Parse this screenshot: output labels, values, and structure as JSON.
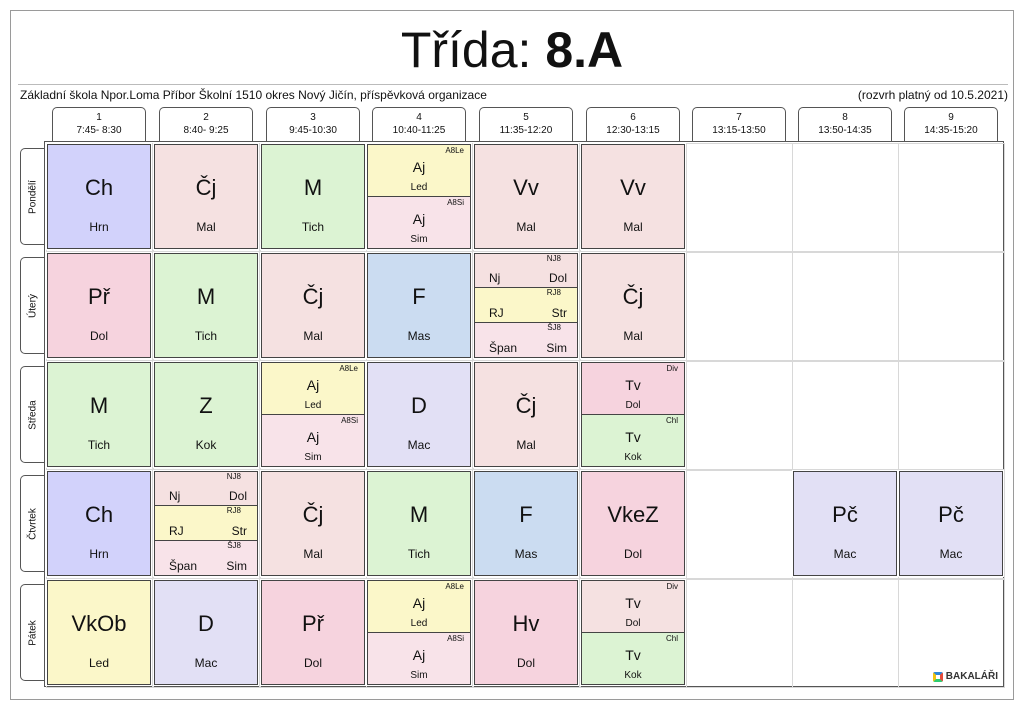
{
  "title": {
    "prefix": "Třída:",
    "class_name": "8.A"
  },
  "school_name": "Základní škola Npor.Loma Příbor Školní 1510 okres Nový Jičín, příspěvková organizace",
  "valid_from": "(rozvrh platný od 10.5.2021)",
  "brand": "BAKALÁŘI",
  "colors": {
    "violet": "#d2d2fb",
    "pink": "#f5e1e1",
    "green": "#dcf3d3",
    "yellow": "#fbf7c9",
    "rose": "#f6d3de",
    "blue": "#cbdcf1",
    "lavender": "#e2e0f5",
    "lightpink": "#f8e3e9"
  },
  "periods": [
    {
      "num": "1",
      "time": "7:45- 8:30"
    },
    {
      "num": "2",
      "time": "8:40- 9:25"
    },
    {
      "num": "3",
      "time": "9:45-10:30"
    },
    {
      "num": "4",
      "time": "10:40-11:25"
    },
    {
      "num": "5",
      "time": "11:35-12:20"
    },
    {
      "num": "6",
      "time": "12:30-13:15"
    },
    {
      "num": "7",
      "time": "13:15-13:50"
    },
    {
      "num": "8",
      "time": "13:50-14:35"
    },
    {
      "num": "9",
      "time": "14:35-15:20"
    }
  ],
  "days": [
    {
      "name": "Pondělí",
      "lessons": [
        {
          "period": 1,
          "type": "single",
          "subject": "Ch",
          "teacher": "Hrn",
          "color": "violet"
        },
        {
          "period": 2,
          "type": "single",
          "subject": "Čj",
          "teacher": "Mal",
          "color": "pink"
        },
        {
          "period": 3,
          "type": "single",
          "subject": "M",
          "teacher": "Tich",
          "color": "green"
        },
        {
          "period": 4,
          "type": "split2",
          "parts": [
            {
              "group": "A8Le",
              "subject": "Aj",
              "teacher": "Led",
              "color": "yellow"
            },
            {
              "group": "A8Si",
              "subject": "Aj",
              "teacher": "Sim",
              "color": "lightpink"
            }
          ]
        },
        {
          "period": 5,
          "type": "single",
          "subject": "Vv",
          "teacher": "Mal",
          "color": "pink"
        },
        {
          "period": 6,
          "type": "single",
          "subject": "Vv",
          "teacher": "Mal",
          "color": "pink"
        }
      ]
    },
    {
      "name": "Úterý",
      "lessons": [
        {
          "period": 1,
          "type": "single",
          "subject": "Př",
          "teacher": "Dol",
          "color": "rose"
        },
        {
          "period": 2,
          "type": "single",
          "subject": "M",
          "teacher": "Tich",
          "color": "green"
        },
        {
          "period": 3,
          "type": "single",
          "subject": "Čj",
          "teacher": "Mal",
          "color": "pink"
        },
        {
          "period": 4,
          "type": "single",
          "subject": "F",
          "teacher": "Mas",
          "color": "blue"
        },
        {
          "period": 5,
          "type": "split3",
          "parts": [
            {
              "group": "NJ8",
              "subject": "Nj",
              "teacher": "Dol",
              "color": "pink"
            },
            {
              "group": "RJ8",
              "subject": "RJ",
              "teacher": "Str",
              "color": "yellow"
            },
            {
              "group": "ŠJ8",
              "subject": "Špan",
              "teacher": "Sim",
              "color": "lightpink"
            }
          ]
        },
        {
          "period": 6,
          "type": "single",
          "subject": "Čj",
          "teacher": "Mal",
          "color": "pink"
        }
      ]
    },
    {
      "name": "Středa",
      "lessons": [
        {
          "period": 1,
          "type": "single",
          "subject": "M",
          "teacher": "Tich",
          "color": "green"
        },
        {
          "period": 2,
          "type": "single",
          "subject": "Z",
          "teacher": "Kok",
          "color": "green"
        },
        {
          "period": 3,
          "type": "split2",
          "parts": [
            {
              "group": "A8Le",
              "subject": "Aj",
              "teacher": "Led",
              "color": "yellow"
            },
            {
              "group": "A8Si",
              "subject": "Aj",
              "teacher": "Sim",
              "color": "lightpink"
            }
          ]
        },
        {
          "period": 4,
          "type": "single",
          "subject": "D",
          "teacher": "Mac",
          "color": "lavender"
        },
        {
          "period": 5,
          "type": "single",
          "subject": "Čj",
          "teacher": "Mal",
          "color": "pink"
        },
        {
          "period": 6,
          "type": "split2",
          "parts": [
            {
              "group": "Div",
              "subject": "Tv",
              "teacher": "Dol",
              "color": "rose"
            },
            {
              "group": "Chl",
              "subject": "Tv",
              "teacher": "Kok",
              "color": "green"
            }
          ]
        }
      ]
    },
    {
      "name": "Čtvrtek",
      "lessons": [
        {
          "period": 1,
          "type": "single",
          "subject": "Ch",
          "teacher": "Hrn",
          "color": "violet"
        },
        {
          "period": 2,
          "type": "split3",
          "parts": [
            {
              "group": "NJ8",
              "subject": "Nj",
              "teacher": "Dol",
              "color": "pink"
            },
            {
              "group": "RJ8",
              "subject": "RJ",
              "teacher": "Str",
              "color": "yellow"
            },
            {
              "group": "ŠJ8",
              "subject": "Špan",
              "teacher": "Sim",
              "color": "lightpink"
            }
          ]
        },
        {
          "period": 3,
          "type": "single",
          "subject": "Čj",
          "teacher": "Mal",
          "color": "pink"
        },
        {
          "period": 4,
          "type": "single",
          "subject": "M",
          "teacher": "Tich",
          "color": "green"
        },
        {
          "period": 5,
          "type": "single",
          "subject": "F",
          "teacher": "Mas",
          "color": "blue"
        },
        {
          "period": 6,
          "type": "single",
          "subject": "VkeZ",
          "teacher": "Dol",
          "color": "rose"
        },
        {
          "period": 8,
          "type": "single",
          "subject": "Pč",
          "teacher": "Mac",
          "color": "lavender"
        },
        {
          "period": 9,
          "type": "single",
          "subject": "Pč",
          "teacher": "Mac",
          "color": "lavender"
        }
      ]
    },
    {
      "name": "Pátek",
      "lessons": [
        {
          "period": 1,
          "type": "single",
          "subject": "VkOb",
          "teacher": "Led",
          "color": "yellow"
        },
        {
          "period": 2,
          "type": "single",
          "subject": "D",
          "teacher": "Mac",
          "color": "lavender"
        },
        {
          "period": 3,
          "type": "single",
          "subject": "Př",
          "teacher": "Dol",
          "color": "rose"
        },
        {
          "period": 4,
          "type": "split2",
          "parts": [
            {
              "group": "A8Le",
              "subject": "Aj",
              "teacher": "Led",
              "color": "yellow"
            },
            {
              "group": "A8Si",
              "subject": "Aj",
              "teacher": "Sim",
              "color": "lightpink"
            }
          ]
        },
        {
          "period": 5,
          "type": "single",
          "subject": "Hv",
          "teacher": "Dol",
          "color": "rose"
        },
        {
          "period": 6,
          "type": "split2",
          "parts": [
            {
              "group": "Div",
              "subject": "Tv",
              "teacher": "Dol",
              "color": "pink"
            },
            {
              "group": "Chl",
              "subject": "Tv",
              "teacher": "Kok",
              "color": "green"
            }
          ]
        }
      ]
    }
  ]
}
